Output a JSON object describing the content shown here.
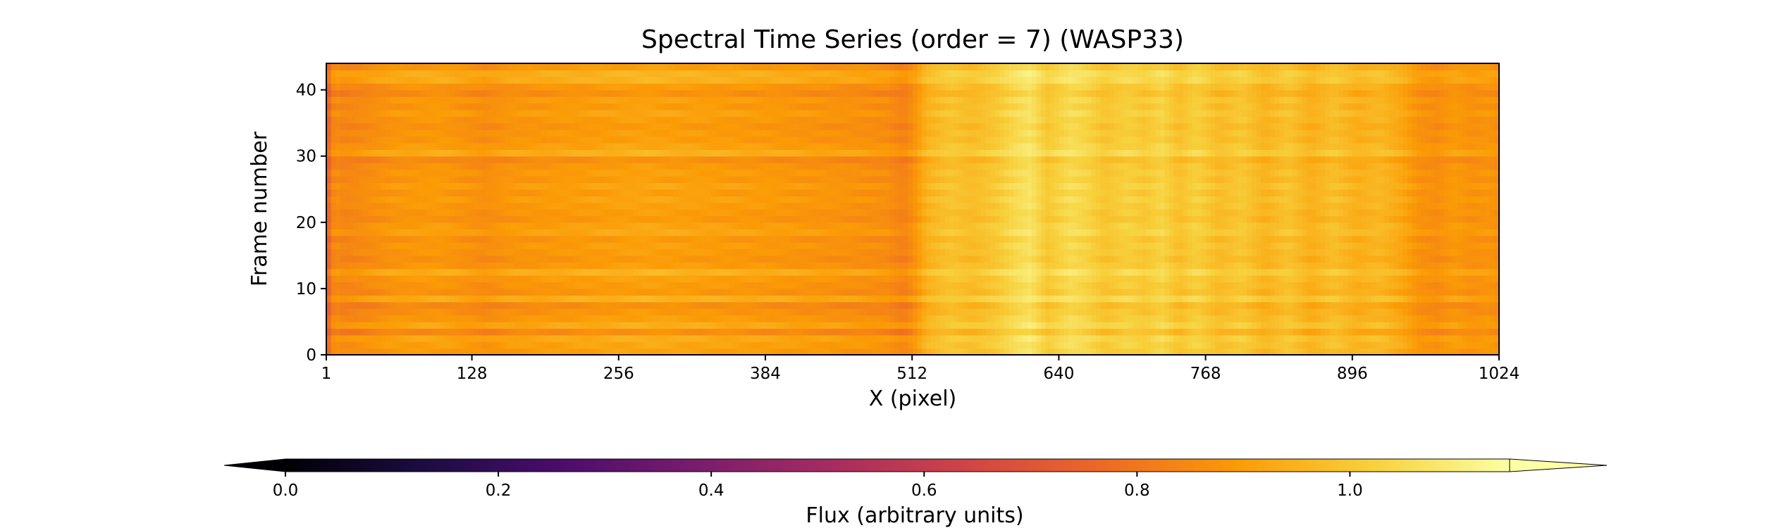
{
  "chart_data": {
    "type": "heatmap",
    "title": "Spectral Time Series (order = 7) (WASP33)",
    "xlabel": "X (pixel)",
    "ylabel": "Frame number",
    "xlim": [
      1,
      1024
    ],
    "ylim": [
      0,
      44
    ],
    "x_ticks": [
      1,
      128,
      256,
      384,
      512,
      640,
      768,
      896,
      1024
    ],
    "y_ticks": [
      0,
      10,
      20,
      30,
      40
    ],
    "n_frames": 44,
    "colormap": "inferno",
    "colormap_stops": [
      "#000004",
      "#1b0c41",
      "#4a0c6b",
      "#781c6d",
      "#a52c60",
      "#cf4446",
      "#ed6925",
      "#fb9b06",
      "#f7d13d",
      "#fcffa4"
    ],
    "column_profile": [
      [
        1,
        0.72
      ],
      [
        8,
        0.86
      ],
      [
        16,
        0.84
      ],
      [
        30,
        0.85
      ],
      [
        60,
        0.88
      ],
      [
        100,
        0.89
      ],
      [
        140,
        0.86
      ],
      [
        160,
        0.88
      ],
      [
        200,
        0.89
      ],
      [
        240,
        0.9
      ],
      [
        280,
        0.91
      ],
      [
        330,
        0.9
      ],
      [
        380,
        0.89
      ],
      [
        420,
        0.88
      ],
      [
        460,
        0.87
      ],
      [
        490,
        0.86
      ],
      [
        505,
        0.83
      ],
      [
        512,
        0.86
      ],
      [
        525,
        0.95
      ],
      [
        545,
        0.99
      ],
      [
        565,
        0.97
      ],
      [
        585,
        1.0
      ],
      [
        600,
        1.04
      ],
      [
        615,
        1.07
      ],
      [
        630,
        1.0
      ],
      [
        650,
        1.05
      ],
      [
        665,
        1.03
      ],
      [
        680,
        0.99
      ],
      [
        700,
        1.02
      ],
      [
        715,
        1.0
      ],
      [
        730,
        1.03
      ],
      [
        745,
        0.98
      ],
      [
        760,
        1.02
      ],
      [
        780,
        0.97
      ],
      [
        800,
        1.0
      ],
      [
        820,
        0.95
      ],
      [
        840,
        0.99
      ],
      [
        860,
        0.94
      ],
      [
        880,
        0.98
      ],
      [
        900,
        0.94
      ],
      [
        920,
        0.96
      ],
      [
        940,
        0.92
      ],
      [
        955,
        0.87
      ],
      [
        970,
        0.86
      ],
      [
        985,
        0.89
      ],
      [
        1000,
        0.87
      ],
      [
        1015,
        0.88
      ],
      [
        1024,
        0.86
      ]
    ],
    "bright_frames": [
      2,
      4,
      8,
      12,
      18,
      25,
      30,
      36,
      41,
      42
    ],
    "dark_frames": [
      3,
      7,
      9,
      20,
      29,
      34,
      39
    ],
    "colorbar": {
      "label": "Flux (arbitrary units)",
      "range": [
        0.0,
        1.15
      ],
      "ticks": [
        "0.0",
        "0.2",
        "0.4",
        "0.6",
        "0.8",
        "1.0"
      ],
      "extend": "both",
      "orientation": "horizontal"
    }
  }
}
